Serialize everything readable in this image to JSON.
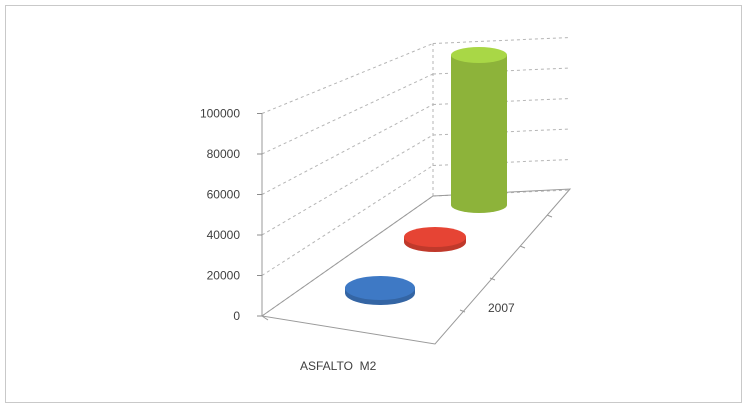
{
  "chart_data": {
    "type": "bar",
    "title": "",
    "xlabel": "",
    "ylabel": "",
    "categories": [
      "ASFALTO  M2"
    ],
    "depth_categories": [
      "2007"
    ],
    "series": [
      {
        "values": [
          0
        ],
        "color": "#3465a4"
      },
      {
        "values": [
          0
        ],
        "color": "#c0392b"
      },
      {
        "values": [
          80000
        ],
        "color": "#8db33a"
      }
    ],
    "ylim": [
      0,
      100000
    ],
    "yticks": [
      "0",
      "20000",
      "40000",
      "60000",
      "80000",
      "100000"
    ],
    "grid": true,
    "legend": "none",
    "shape": "cylinder-3d"
  }
}
